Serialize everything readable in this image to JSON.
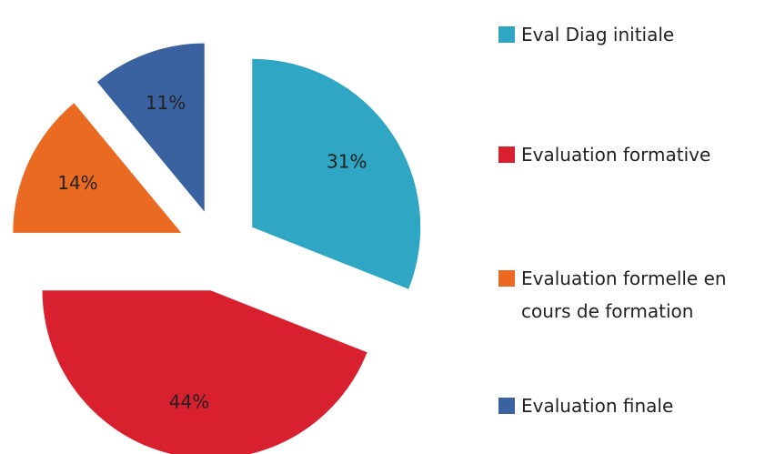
{
  "chart_data": {
    "type": "pie",
    "categories": [
      "Eval Diag initiale",
      "Evaluation formative",
      "Evaluation formelle en cours de formation",
      "Evaluation finale"
    ],
    "values": [
      31,
      44,
      14,
      11
    ],
    "value_labels": [
      "31%",
      "44%",
      "14%",
      "11%"
    ],
    "colors": [
      "#2ea6c4",
      "#d9202e",
      "#ea6a22",
      "#3b62a0"
    ],
    "legend": "right"
  }
}
